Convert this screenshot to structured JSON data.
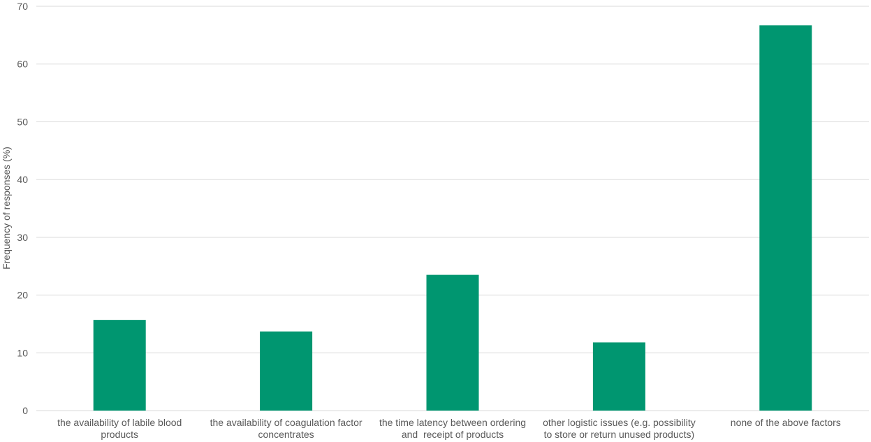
{
  "chart_data": {
    "type": "bar",
    "ylabel": "Frequency of responses (%)",
    "xlabel": "",
    "ylim": [
      0,
      70
    ],
    "yticks": [
      0,
      10,
      20,
      30,
      40,
      50,
      60,
      70
    ],
    "grid": true,
    "categories": [
      [
        "the availability of labile blood",
        "products"
      ],
      [
        "the availability of coagulation factor",
        "concentrates"
      ],
      [
        "the time latency between ordering",
        "and  receipt of products"
      ],
      [
        "other logistic issues (e.g. possibility",
        "to store or return unused products)"
      ],
      [
        "none of the above factors"
      ]
    ],
    "values": [
      15.7,
      13.7,
      23.5,
      11.8,
      66.7
    ],
    "bar_color": "#009670"
  }
}
